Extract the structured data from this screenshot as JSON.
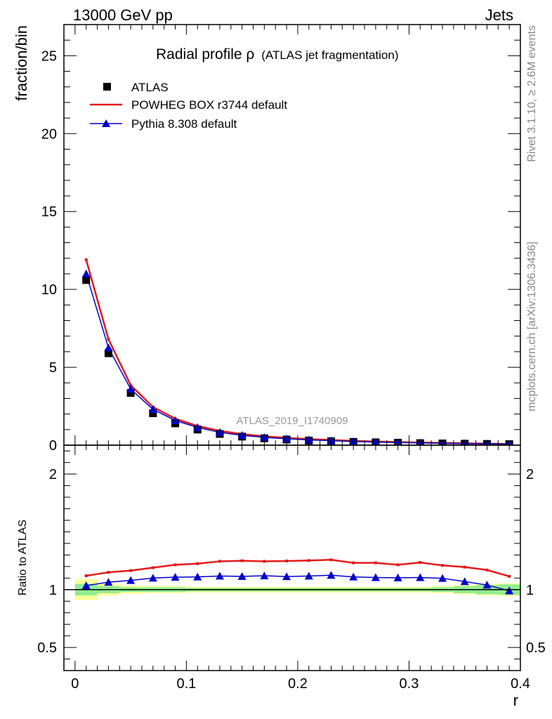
{
  "header": {
    "left": "13000 GeV pp",
    "right": "Jets"
  },
  "side_text": {
    "rivet": "Rivet 3.1.10, ≥ 2.6M events",
    "mcplots": "mcplots.cern.ch [arXiv:1306.3436]"
  },
  "watermark": "ATLAS_2019_I1740909",
  "chart_data": [
    {
      "type": "line",
      "title": "Radial profile ρ (ATLAS jet fragmentation)",
      "title_main": "Radial profile",
      "title_rho": "ρ",
      "title_paren": "(ATLAS jet fragmentation)",
      "xlabel": "r",
      "ylabel": "fraction/bin",
      "xlim": [
        -0.01,
        0.4
      ],
      "ylim": [
        0,
        27
      ],
      "xticks": [
        0,
        0.1,
        0.2,
        0.3,
        0.4
      ],
      "xtick_labels": [
        "0",
        "0.1",
        "0.2",
        "0.3",
        "0.4"
      ],
      "yticks": [
        0,
        5,
        10,
        15,
        20,
        25
      ],
      "ytick_labels": [
        "0",
        "5",
        "10",
        "15",
        "20",
        "25"
      ],
      "legend_position": "top-left",
      "x": [
        0.01,
        0.03,
        0.05,
        0.07,
        0.09,
        0.11,
        0.13,
        0.15,
        0.17,
        0.19,
        0.21,
        0.23,
        0.25,
        0.27,
        0.29,
        0.31,
        0.33,
        0.35,
        0.37,
        0.39
      ],
      "series": [
        {
          "name": "ATLAS",
          "color": "#000000",
          "marker": "square",
          "values": [
            10.6,
            5.9,
            3.35,
            2.05,
            1.4,
            1.0,
            0.72,
            0.55,
            0.44,
            0.36,
            0.3,
            0.25,
            0.21,
            0.18,
            0.155,
            0.13,
            0.11,
            0.095,
            0.08,
            0.065
          ]
        },
        {
          "name": "POWHEG BOX r3744 default",
          "color": "#e31a1c",
          "marker": "none",
          "values": [
            11.9,
            6.8,
            3.85,
            2.45,
            1.7,
            1.23,
            0.92,
            0.71,
            0.57,
            0.47,
            0.39,
            0.33,
            0.275,
            0.235,
            0.2,
            0.17,
            0.14,
            0.12,
            0.1,
            0.075
          ]
        },
        {
          "name": "Pythia 8.308 default",
          "color": "#0000cc",
          "marker": "triangle",
          "values": [
            11.0,
            6.25,
            3.6,
            2.3,
            1.58,
            1.14,
            0.82,
            0.63,
            0.5,
            0.41,
            0.34,
            0.285,
            0.235,
            0.2,
            0.17,
            0.145,
            0.12,
            0.1,
            0.083,
            0.065
          ]
        }
      ]
    },
    {
      "type": "line",
      "xlabel": "r",
      "ylabel": "Ratio to ATLAS",
      "xlim": [
        -0.01,
        0.4
      ],
      "ylim": [
        0.3,
        2.25
      ],
      "yticks": [
        0.5,
        1,
        2
      ],
      "ytick_labels": [
        "0.5",
        "1",
        "2"
      ],
      "x": [
        0.01,
        0.03,
        0.05,
        0.07,
        0.09,
        0.11,
        0.13,
        0.15,
        0.17,
        0.19,
        0.21,
        0.23,
        0.25,
        0.27,
        0.29,
        0.31,
        0.33,
        0.35,
        0.37,
        0.39
      ],
      "series": [
        {
          "name": "POWHEG BOX r3744 default",
          "color": "#e31a1c",
          "values": [
            1.12,
            1.15,
            1.165,
            1.19,
            1.215,
            1.225,
            1.245,
            1.25,
            1.245,
            1.248,
            1.252,
            1.258,
            1.232,
            1.232,
            1.215,
            1.235,
            1.21,
            1.195,
            1.17,
            1.115
          ]
        },
        {
          "name": "Pythia 8.308 default",
          "color": "#0000cc",
          "values": [
            1.035,
            1.065,
            1.08,
            1.1,
            1.108,
            1.11,
            1.118,
            1.115,
            1.12,
            1.113,
            1.118,
            1.125,
            1.11,
            1.105,
            1.103,
            1.105,
            1.098,
            1.07,
            1.04,
            0.99
          ]
        }
      ],
      "uncertainty_bands": {
        "stat_color": "#90ee90",
        "total_color": "#ffff99",
        "stat_halfwidth": [
          0.05,
          0.03,
          0.02,
          0.02,
          0.02,
          0.015,
          0.015,
          0.015,
          0.015,
          0.015,
          0.015,
          0.015,
          0.015,
          0.015,
          0.015,
          0.015,
          0.02,
          0.03,
          0.04,
          0.045
        ],
        "total_halfwidth": [
          0.09,
          0.05,
          0.035,
          0.03,
          0.03,
          0.025,
          0.025,
          0.025,
          0.025,
          0.025,
          0.025,
          0.025,
          0.025,
          0.025,
          0.025,
          0.025,
          0.03,
          0.04,
          0.05,
          0.055
        ]
      }
    }
  ]
}
